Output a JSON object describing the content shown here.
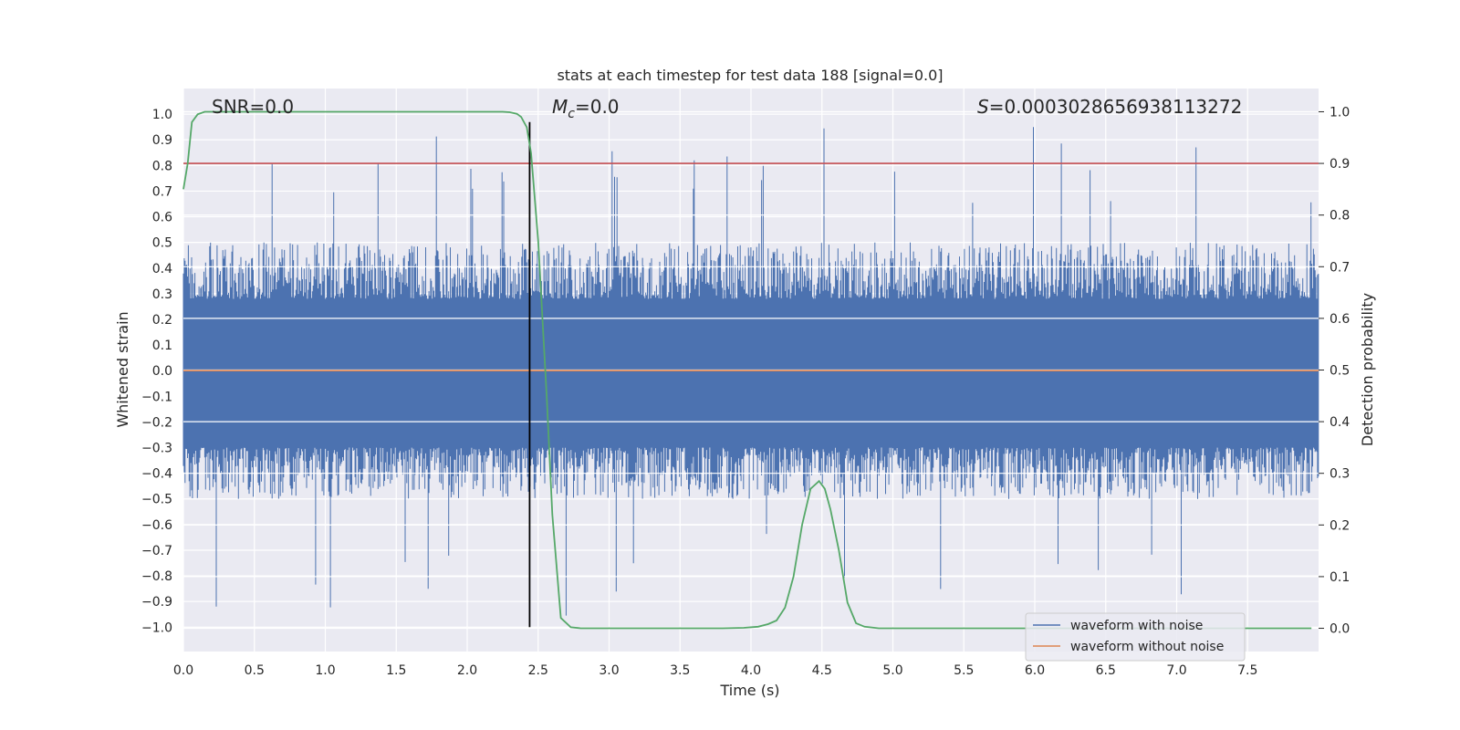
{
  "chart_data": {
    "type": "line",
    "title": "stats at each timestep for test data 188 [signal=0.0]",
    "xlabel": "Time (s)",
    "ylabel": "Whitened strain",
    "y2label": "Detection probability",
    "xlim": [
      0.0,
      8.0
    ],
    "ylim": [
      -1.095,
      1.1
    ],
    "y2lim": [
      -0.045,
      1.045
    ],
    "xticks": [
      0.0,
      0.5,
      1.0,
      1.5,
      2.0,
      2.5,
      3.0,
      3.5,
      4.0,
      4.5,
      5.0,
      5.5,
      6.0,
      6.5,
      7.0,
      7.5
    ],
    "xtick_labels": [
      "0.0",
      "0.5",
      "1.0",
      "1.5",
      "2.0",
      "2.5",
      "3.0",
      "3.5",
      "4.0",
      "4.5",
      "5.0",
      "5.5",
      "6.0",
      "6.5",
      "7.0",
      "7.5"
    ],
    "yticks": [
      1.0,
      0.9,
      0.8,
      0.7,
      0.6,
      0.5,
      0.4,
      0.3,
      0.2,
      0.1,
      0.0,
      -0.1,
      -0.2,
      -0.3,
      -0.4,
      -0.5,
      -0.6,
      -0.7,
      -0.8,
      -0.9,
      -1.0
    ],
    "ytick_labels": [
      "1.0",
      "0.9",
      "0.8",
      "0.7",
      "0.6",
      "0.5",
      "0.4",
      "0.3",
      "0.2",
      "0.1",
      "0.0",
      "−0.1",
      "−0.2",
      "−0.3",
      "−0.4",
      "−0.5",
      "−0.6",
      "−0.7",
      "−0.8",
      "−0.9",
      "−1.0"
    ],
    "y2ticks": [
      1.0,
      0.9,
      0.8,
      0.7,
      0.6,
      0.5,
      0.4,
      0.3,
      0.2,
      0.1,
      0.0
    ],
    "y2tick_labels": [
      "1.0",
      "0.9",
      "0.8",
      "0.7",
      "0.6",
      "0.5",
      "0.4",
      "0.3",
      "0.2",
      "0.1",
      "0.0"
    ],
    "grid": true,
    "annotations": {
      "snr": "SNR=0.0",
      "mc_symbol": "M",
      "mc_sub": "c",
      "mc_value": "=0.0",
      "s_symbol": "S",
      "s_value": "=0.0003028656938113272"
    },
    "series": [
      {
        "name": "waveform with noise",
        "axis": "left",
        "color": "#4c72b0",
        "description": "dense whitened noise over 0–8 s, mostly within ±0.5 with spikes to about ±0.95",
        "envelope_upper": 0.5,
        "envelope_lower": -0.5,
        "peak_upper": 0.97,
        "peak_lower": -1.0
      },
      {
        "name": "waveform without noise",
        "axis": "left",
        "color": "#dd8452",
        "x": [
          0.0,
          8.0
        ],
        "y": [
          0.0,
          0.0
        ]
      },
      {
        "name": "detection probability",
        "axis": "right",
        "color": "#55a868",
        "x": [
          0.0,
          0.03,
          0.06,
          0.1,
          0.15,
          0.3,
          1.0,
          2.0,
          2.25,
          2.3,
          2.35,
          2.38,
          2.42,
          2.45,
          2.5,
          2.56,
          2.6,
          2.66,
          2.73,
          2.8,
          3.0,
          3.5,
          3.8,
          3.95,
          4.05,
          4.12,
          4.18,
          4.24,
          4.3,
          4.36,
          4.42,
          4.48,
          4.52,
          4.56,
          4.62,
          4.68,
          4.74,
          4.8,
          4.9,
          5.5,
          6.0,
          6.5,
          7.0,
          7.5,
          7.95
        ],
        "y": [
          0.85,
          0.9,
          0.98,
          0.995,
          1.0,
          1.0,
          1.0,
          1.0,
          1.0,
          0.999,
          0.996,
          0.99,
          0.97,
          0.92,
          0.75,
          0.45,
          0.22,
          0.02,
          0.002,
          0.0,
          0.0,
          0.0,
          0.0,
          0.001,
          0.003,
          0.008,
          0.015,
          0.04,
          0.1,
          0.2,
          0.27,
          0.285,
          0.27,
          0.23,
          0.15,
          0.05,
          0.01,
          0.003,
          0.0,
          0.0,
          0.0,
          0.0,
          0.0,
          0.0,
          0.0
        ]
      }
    ],
    "threshold": {
      "axis": "right",
      "value": 0.9,
      "color": "#c44e52"
    },
    "vline": {
      "x": 2.44,
      "y_from": -1.0,
      "y_to": 0.98,
      "color": "#000000"
    },
    "legend": {
      "location": "lower right",
      "entries": [
        {
          "label": "waveform with noise",
          "color": "#4c72b0"
        },
        {
          "label": "waveform without noise",
          "color": "#dd8452"
        }
      ]
    },
    "colors": {
      "plot_background": "#eaeaf2",
      "grid": "#ffffff"
    }
  }
}
